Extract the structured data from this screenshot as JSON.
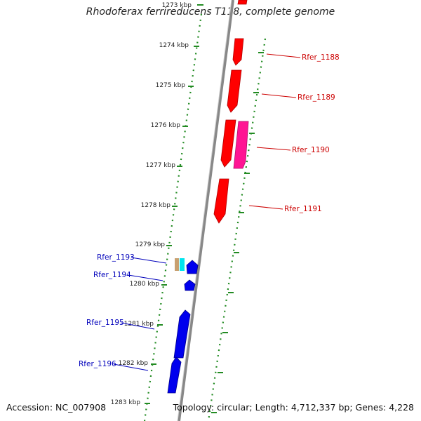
{
  "header": {
    "title": "Rhodoferax ferrireducens T118, complete genome"
  },
  "footer": {
    "accession": "Accession: NC_007908",
    "topology": "Topology: circular; Length: 4,712,337 bp; Genes: 4,228"
  },
  "colors": {
    "forward_gene": "#ff0000",
    "forward_gene_alt": "#ff1493",
    "reverse_gene": "#0000ff",
    "gc_ticks": "#228b22",
    "backbone": "#888888",
    "forward_label": "#cc0000",
    "reverse_label": "#0000bb"
  },
  "ticks": [
    {
      "label": "1273 kbp"
    },
    {
      "label": "1274 kbp"
    },
    {
      "label": "1275 kbp"
    },
    {
      "label": "1276 kbp"
    },
    {
      "label": "1277 kbp"
    },
    {
      "label": "1278 kbp"
    },
    {
      "label": "1279 kbp"
    },
    {
      "label": "1280 kbp"
    },
    {
      "label": "1281 kbp"
    },
    {
      "label": "1282 kbp"
    },
    {
      "label": "1283 kbp"
    }
  ],
  "genes_forward": [
    {
      "label": "Rfer_1188"
    },
    {
      "label": "Rfer_1189"
    },
    {
      "label": "Rfer_1190"
    },
    {
      "label": "Rfer_1191"
    }
  ],
  "genes_reverse": [
    {
      "label": "Rfer_1193"
    },
    {
      "label": "Rfer_1194"
    },
    {
      "label": "Rfer_1195"
    },
    {
      "label": "Rfer_1196"
    }
  ]
}
